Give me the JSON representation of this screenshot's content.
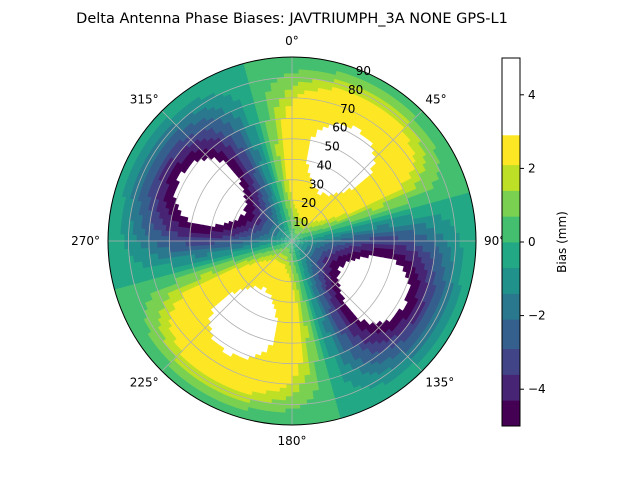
{
  "chart_data": {
    "type": "heatmap",
    "projection": "polar",
    "title": "Delta Antenna Phase Biases: JAVTRIUMPH_3A   NONE GPS-L1",
    "azimuth_ticks": [
      "0°",
      "45°",
      "90°",
      "135°",
      "180°",
      "225°",
      "270°",
      "315°"
    ],
    "zenith_ticks": [
      "10",
      "20",
      "30",
      "40",
      "50",
      "60",
      "70",
      "80",
      "90"
    ],
    "zenith_range": [
      0,
      90
    ],
    "grid": true,
    "colorbar": {
      "label": "Bias (mm)",
      "colormap": "viridis",
      "range": [
        -5,
        5
      ],
      "ticks": [
        "−4",
        "−2",
        "0",
        "2",
        "4"
      ],
      "levels": [
        -5,
        -4.3,
        -3.6,
        -2.9,
        -2.1,
        -1.4,
        -0.7,
        0,
        0.7,
        1.4,
        2.1,
        2.9,
        3.6,
        4.3,
        5
      ],
      "colors": [
        "#440154",
        "#482475",
        "#414487",
        "#355f8d",
        "#2a788e",
        "#21918c",
        "#22a884",
        "#44bf70",
        "#7ad151",
        "#bddf26",
        "#fde725"
      ]
    },
    "field": {
      "description_values": "bias(az,z) = 6.5 * sin(z/90*pi)^1.2 * cos(2*(az - 30deg)); |bias| > 5 left blank",
      "amplitude_mm": 6.5,
      "azimuth_phase_deg": 30,
      "harmonic": 2
    }
  }
}
